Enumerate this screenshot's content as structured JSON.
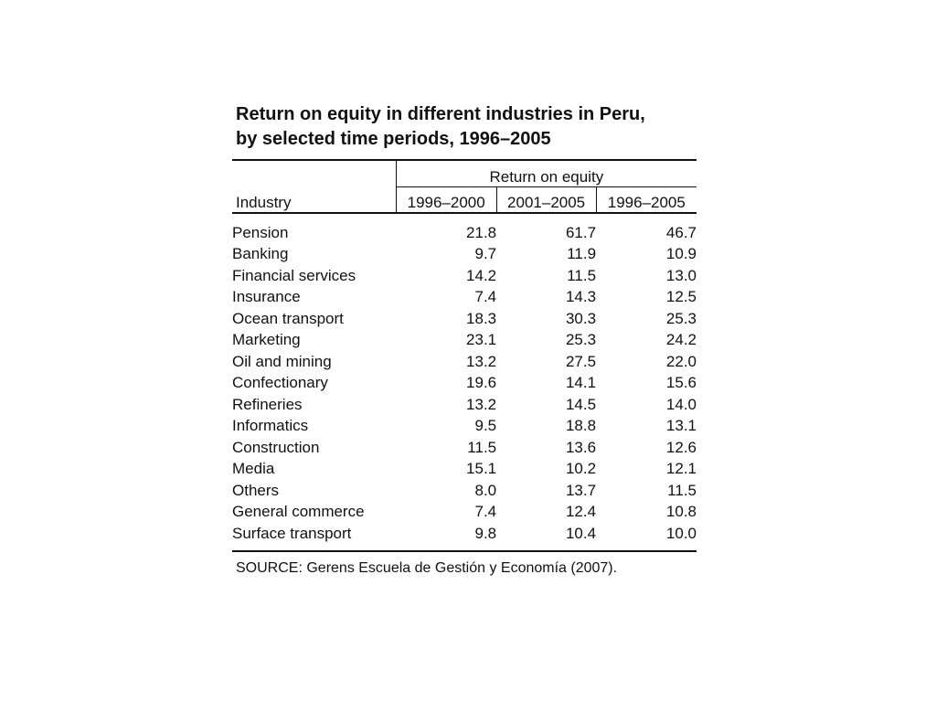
{
  "title": {
    "line1": "Return on equity in different industries in Peru,",
    "line2": "by selected time periods, 1996–2005"
  },
  "table": {
    "group_header": "Return on equity",
    "industry_header": "Industry",
    "periods": [
      "1996–2000",
      "2001–2005",
      "1996–2005"
    ],
    "rows": [
      {
        "industry": "Pension",
        "values": [
          "21.8",
          "61.7",
          "46.7"
        ]
      },
      {
        "industry": "Banking",
        "values": [
          "9.7",
          "11.9",
          "10.9"
        ]
      },
      {
        "industry": "Financial services",
        "values": [
          "14.2",
          "11.5",
          "13.0"
        ]
      },
      {
        "industry": "Insurance",
        "values": [
          "7.4",
          "14.3",
          "12.5"
        ]
      },
      {
        "industry": "Ocean transport",
        "values": [
          "18.3",
          "30.3",
          "25.3"
        ]
      },
      {
        "industry": "Marketing",
        "values": [
          "23.1",
          "25.3",
          "24.2"
        ]
      },
      {
        "industry": "Oil and mining",
        "values": [
          "13.2",
          "27.5",
          "22.0"
        ]
      },
      {
        "industry": "Confectionary",
        "values": [
          "19.6",
          "14.1",
          "15.6"
        ]
      },
      {
        "industry": "Refineries",
        "values": [
          "13.2",
          "14.5",
          "14.0"
        ]
      },
      {
        "industry": "Informatics",
        "values": [
          "9.5",
          "18.8",
          "13.1"
        ]
      },
      {
        "industry": "Construction",
        "values": [
          "11.5",
          "13.6",
          "12.6"
        ]
      },
      {
        "industry": "Media",
        "values": [
          "15.1",
          "10.2",
          "12.1"
        ]
      },
      {
        "industry": "Others",
        "values": [
          "8.0",
          "13.7",
          "11.5"
        ]
      },
      {
        "industry": "General commerce",
        "values": [
          "7.4",
          "12.4",
          "10.8"
        ]
      },
      {
        "industry": "Surface transport",
        "values": [
          "9.8",
          "10.4",
          "10.0"
        ]
      }
    ]
  },
  "source": "SOURCE: Gerens Escuela de Gestión y Economía (2007)."
}
